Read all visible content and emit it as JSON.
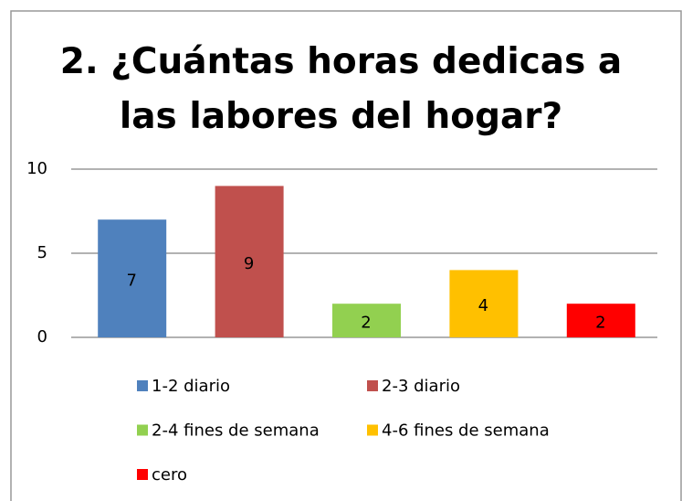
{
  "chart_data": {
    "type": "bar",
    "title": "2. ¿Cuántas horas dedicas a las labores del hogar?",
    "categories": [
      "1-2 diario",
      "2-3 diario",
      "2-4 fines de semana",
      "4-6 fines de semana",
      "cero"
    ],
    "values": [
      7,
      9,
      2,
      4,
      2
    ],
    "colors": [
      "#4f81bd",
      "#c0504d",
      "#92d050",
      "#ffc000",
      "#ff0000"
    ],
    "ylim": [
      0,
      10
    ],
    "yticks": [
      0,
      5,
      10
    ],
    "grid": true,
    "legend": "bottom"
  }
}
